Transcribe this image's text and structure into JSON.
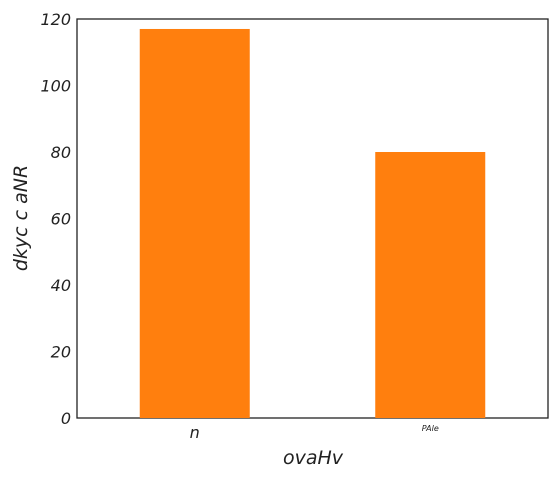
{
  "chart_data": {
    "type": "bar",
    "categories": [
      "n",
      "PAle"
    ],
    "values": [
      117,
      80
    ],
    "xlabel": "ovaHv",
    "ylabel": "dkyc  c  aNR",
    "ylim": [
      0,
      120
    ],
    "yticks": [
      "0",
      "20",
      "40",
      "60",
      "80",
      "100",
      "120"
    ],
    "bar_color": "#ff7f0e",
    "grid": false,
    "legend": "none"
  }
}
